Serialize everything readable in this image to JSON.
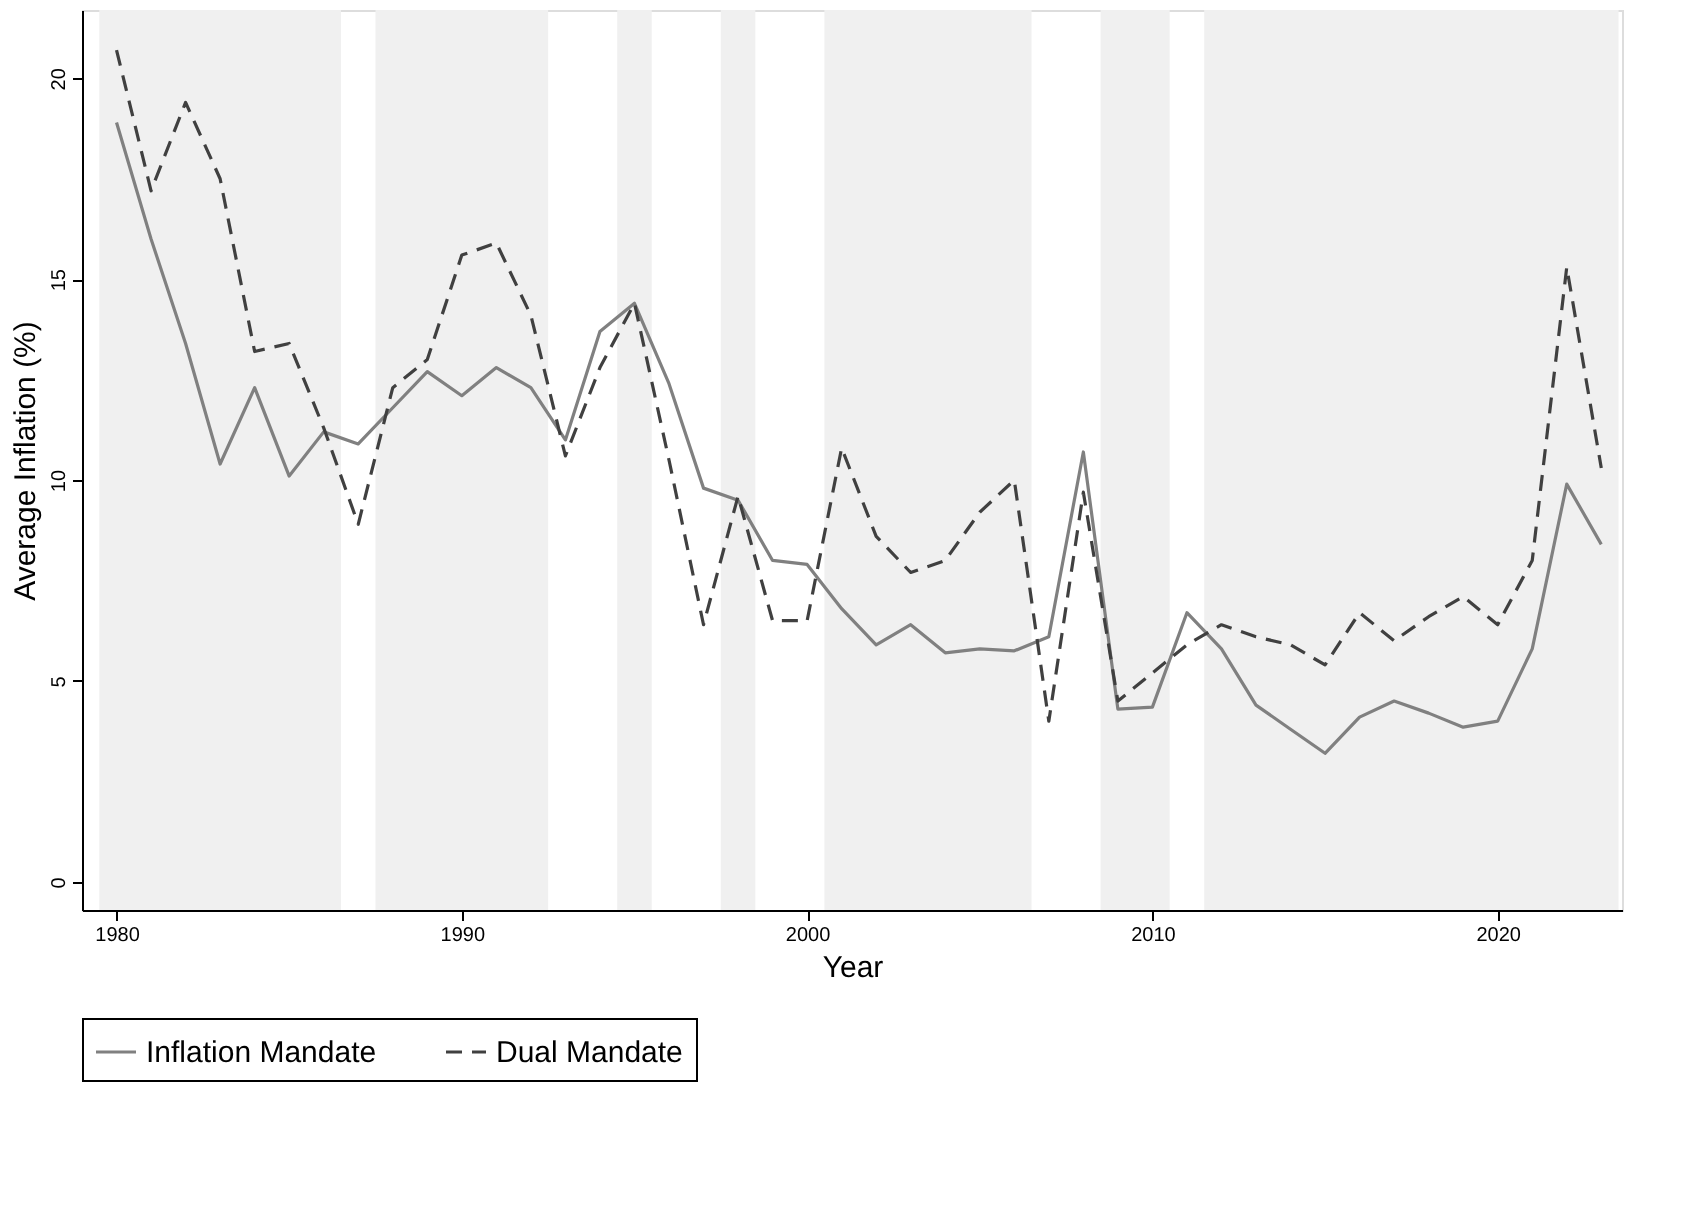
{
  "chart_data": {
    "type": "line",
    "xlabel": "Year",
    "ylabel": "Average Inflation (%)",
    "x": [
      1980,
      1981,
      1982,
      1983,
      1984,
      1985,
      1986,
      1987,
      1988,
      1989,
      1990,
      1991,
      1992,
      1993,
      1994,
      1995,
      1996,
      1997,
      1998,
      1999,
      2000,
      2001,
      2002,
      2003,
      2004,
      2005,
      2006,
      2007,
      2008,
      2009,
      2010,
      2011,
      2012,
      2013,
      2014,
      2015,
      2016,
      2017,
      2018,
      2019,
      2020,
      2021,
      2022,
      2023
    ],
    "series": [
      {
        "name": "Inflation Mandate",
        "color": "#808080",
        "line_style": "solid",
        "values": [
          18.9,
          16.0,
          13.4,
          10.4,
          12.3,
          10.1,
          11.2,
          10.9,
          11.8,
          12.7,
          12.1,
          12.8,
          12.3,
          11.0,
          13.7,
          14.4,
          12.4,
          9.8,
          9.5,
          8.0,
          7.9,
          6.8,
          5.9,
          6.4,
          5.7,
          5.8,
          5.75,
          6.1,
          10.7,
          4.3,
          4.35,
          6.7,
          5.8,
          4.4,
          3.8,
          3.2,
          4.1,
          4.5,
          4.2,
          3.85,
          4.0,
          5.8,
          9.9,
          8.4
        ]
      },
      {
        "name": "Dual Mandate",
        "color": "#404040",
        "line_style": "dashed",
        "values": [
          20.7,
          17.2,
          19.4,
          17.5,
          13.2,
          13.4,
          11.3,
          8.9,
          12.3,
          13.0,
          15.6,
          15.9,
          14.1,
          10.6,
          12.8,
          14.4,
          10.5,
          6.4,
          9.6,
          6.5,
          6.5,
          10.8,
          8.6,
          7.7,
          8.0,
          9.2,
          10.0,
          4.0,
          9.7,
          4.5,
          5.2,
          5.9,
          6.4,
          6.1,
          5.9,
          5.4,
          6.7,
          6.0,
          6.6,
          7.1,
          6.4,
          8.0,
          15.3,
          10.3
        ]
      }
    ],
    "bands": [
      {
        "axis": "x",
        "from": 1979.5,
        "to": 1986.5,
        "color": "#f0f0f0"
      },
      {
        "axis": "x",
        "from": 1987.5,
        "to": 1992.5,
        "color": "#f0f0f0"
      },
      {
        "axis": "x",
        "from": 1994.5,
        "to": 1995.5,
        "color": "#f0f0f0"
      },
      {
        "axis": "x",
        "from": 1997.5,
        "to": 1998.5,
        "color": "#f0f0f0"
      },
      {
        "axis": "x",
        "from": 2000.5,
        "to": 2006.5,
        "color": "#f0f0f0"
      },
      {
        "axis": "x",
        "from": 2008.5,
        "to": 2010.5,
        "color": "#f0f0f0"
      },
      {
        "axis": "x",
        "from": 2011.5,
        "to": 2023.5,
        "color": "#f0f0f0"
      }
    ],
    "xlim": [
      1979,
      2023.6
    ],
    "xticks": [
      1980,
      1990,
      2000,
      2010,
      2020
    ],
    "ylim": [
      -0.7,
      21.7
    ],
    "yticks": [
      0,
      5,
      10,
      15,
      20
    ],
    "grid": false,
    "legend": "bottom"
  }
}
